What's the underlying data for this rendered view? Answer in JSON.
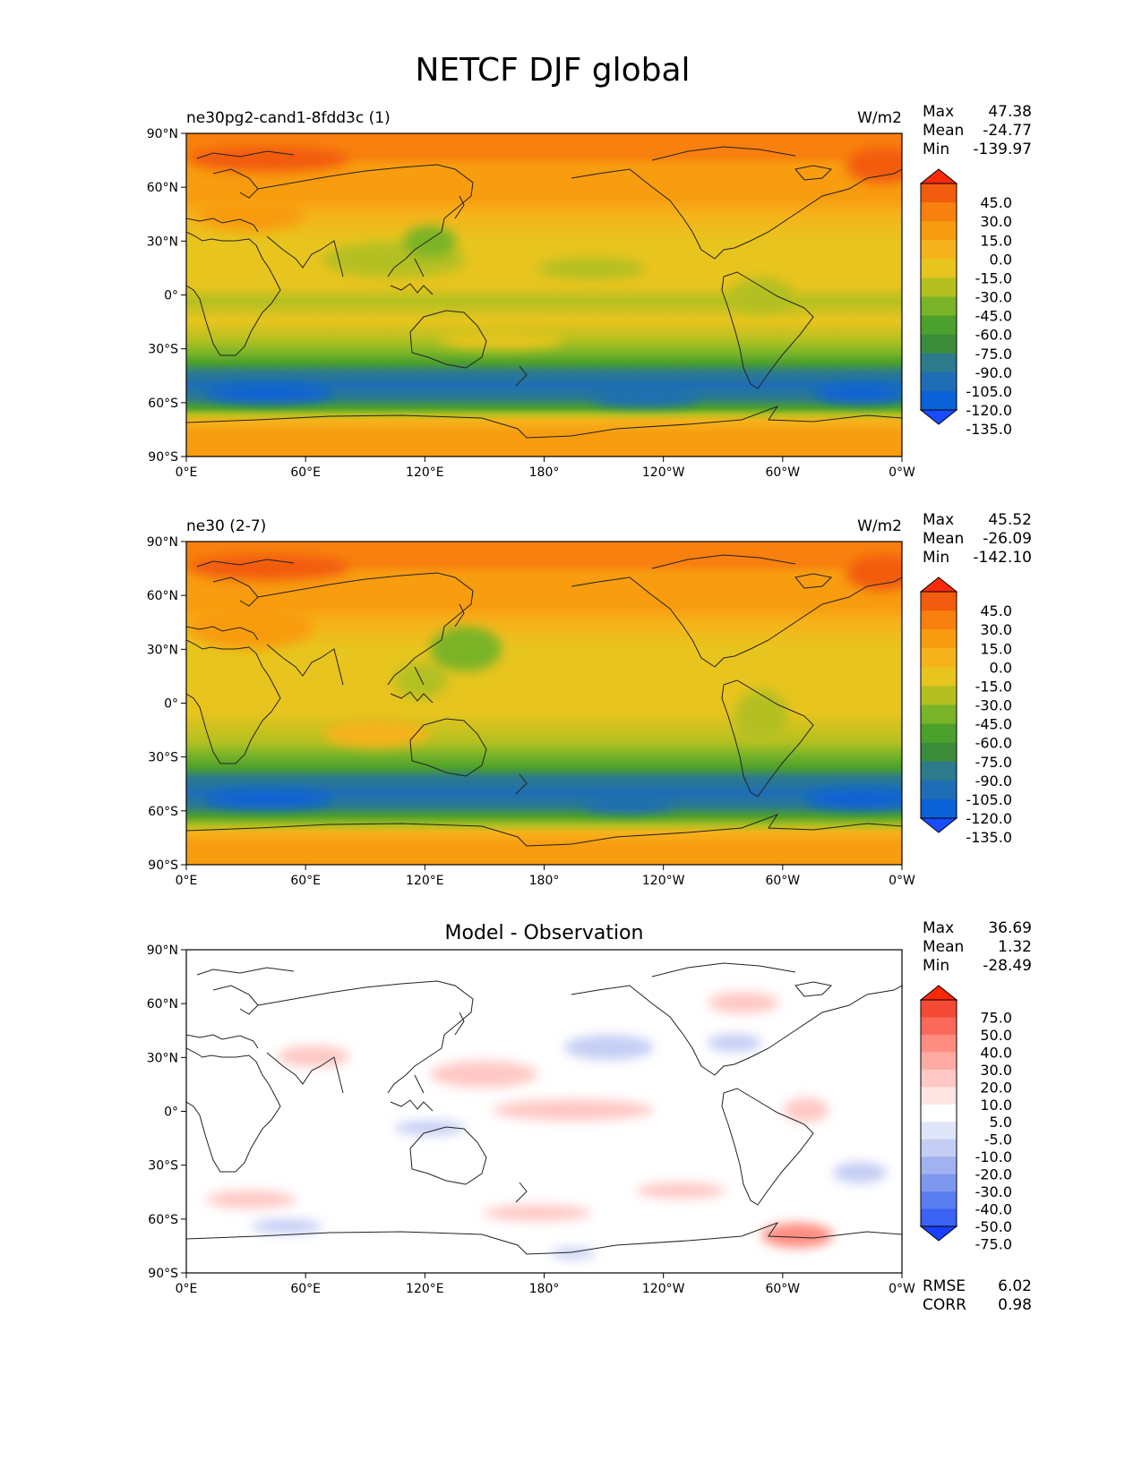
{
  "title": "NETCF DJF global",
  "colors": {
    "main": [
      "#1a4cff",
      "#0a62d6",
      "#1e6eb6",
      "#2c7a8c",
      "#3c8c3c",
      "#4ca02c",
      "#7ab428",
      "#b4c020",
      "#e8c41e",
      "#f6b21a",
      "#f89c10",
      "#f8800e",
      "#f25c0e",
      "#ff2a0a"
    ],
    "diff": [
      "#1a40ff",
      "#3a62f4",
      "#5a7ef0",
      "#7e98ee",
      "#a2b2f0",
      "#c4cef4",
      "#e0e6fa",
      "#ffffff",
      "#ffe4e2",
      "#ffc8c4",
      "#ffaaa2",
      "#ff8c80",
      "#fa6a5a",
      "#f44a36",
      "#ff260a"
    ]
  },
  "axes": {
    "lat_labels": [
      "90°N",
      "60°N",
      "30°N",
      "0°",
      "30°S",
      "60°S",
      "90°S"
    ],
    "lon_labels": [
      "0°E",
      "60°E",
      "120°E",
      "180°",
      "120°W",
      "60°W",
      "0°W"
    ]
  },
  "panels": [
    {
      "left_title": "ne30pg2-cand1-8fdd3c (1)",
      "right_title": "W/m2",
      "center_title": "",
      "stats": [
        {
          "label": "Max",
          "value": "47.38"
        },
        {
          "label": "Mean",
          "value": "-24.77"
        },
        {
          "label": "Min",
          "value": "-139.97"
        }
      ],
      "colorbar_levels": [
        "45.0",
        "30.0",
        "15.0",
        "0.0",
        "-15.0",
        "-30.0",
        "-45.0",
        "-60.0",
        "-75.0",
        "-90.0",
        "-105.0",
        "-120.0",
        "-135.0"
      ],
      "extra_stats": []
    },
    {
      "left_title": "ne30 (2-7)",
      "right_title": "W/m2",
      "center_title": "",
      "stats": [
        {
          "label": "Max",
          "value": "45.52"
        },
        {
          "label": "Mean",
          "value": "-26.09"
        },
        {
          "label": "Min",
          "value": "-142.10"
        }
      ],
      "colorbar_levels": [
        "45.0",
        "30.0",
        "15.0",
        "0.0",
        "-15.0",
        "-30.0",
        "-45.0",
        "-60.0",
        "-75.0",
        "-90.0",
        "-105.0",
        "-120.0",
        "-135.0"
      ],
      "extra_stats": []
    },
    {
      "left_title": "",
      "right_title": "",
      "center_title": "Model - Observation",
      "stats": [
        {
          "label": "Max",
          "value": "36.69"
        },
        {
          "label": "Mean",
          "value": "1.32"
        },
        {
          "label": "Min",
          "value": "-28.49"
        }
      ],
      "colorbar_levels": [
        "75.0",
        "50.0",
        "40.0",
        "30.0",
        "20.0",
        "10.0",
        "5.0",
        "-5.0",
        "-10.0",
        "-20.0",
        "-30.0",
        "-40.0",
        "-50.0",
        "-75.0"
      ],
      "extra_stats": [
        {
          "label": "RMSE",
          "value": "6.02"
        },
        {
          "label": "CORR",
          "value": "0.98"
        }
      ]
    }
  ]
}
